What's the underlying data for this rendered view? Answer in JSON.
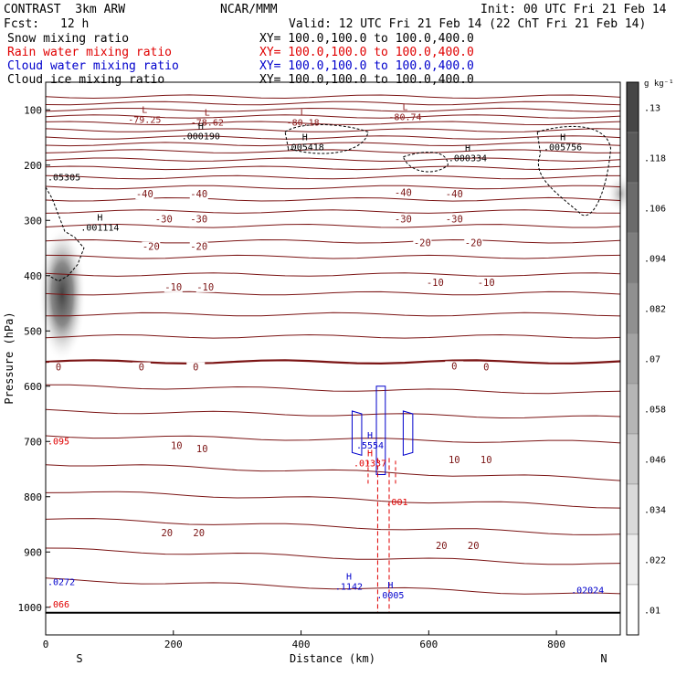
{
  "header": {
    "model": "CONTRAST  3km ARW",
    "center": "NCAR/MMM",
    "init": "Init: 00 UTC Fri 21 Feb 14",
    "fcst_label": "Fcst:",
    "fcst_value": "12 h",
    "valid": "Valid: 12 UTC Fri 21 Feb 14 (22 ChT Fri 21 Feb 14)",
    "fields": [
      {
        "name": "Snow mixing ratio",
        "color": "#000000",
        "xy": "XY= 100.0,100.0 to 100.0,400.0"
      },
      {
        "name": "Rain water mixing ratio",
        "color": "#e00000",
        "xy": "XY= 100.0,100.0 to 100.0,400.0"
      },
      {
        "name": "Cloud water mixing ratio",
        "color": "#0000cc",
        "xy": "XY= 100.0,100.0 to 100.0,400.0"
      },
      {
        "name": "Cloud ice mixing ratio",
        "color": "#000000",
        "xy": "XY= 100.0,100.0 to 100.0,400.0"
      }
    ]
  },
  "chart_data": {
    "type": "contour",
    "xlabel": "Distance (km)",
    "ylabel": "Pressure (hPa)",
    "xlim": [
      0,
      900
    ],
    "ylim": [
      1050,
      50
    ],
    "x_ticks": [
      0,
      200,
      400,
      600,
      800
    ],
    "y_ticks": [
      100,
      200,
      300,
      400,
      500,
      600,
      700,
      800,
      900,
      1000
    ],
    "x_end_labels": {
      "left": "S",
      "right": "N"
    },
    "colorbar": {
      "unit": "g kg⁻¹",
      "levels": [
        ".13",
        ".118",
        ".106",
        ".094",
        ".082",
        ".07",
        ".058",
        ".046",
        ".034",
        ".022",
        ".01"
      ]
    },
    "temperature_labels": [
      {
        "text": "-40",
        "x": 155,
        "p": 257
      },
      {
        "text": "-40",
        "x": 240,
        "p": 257
      },
      {
        "text": "-40",
        "x": 560,
        "p": 254
      },
      {
        "text": "-40",
        "x": 640,
        "p": 257
      },
      {
        "text": "-30",
        "x": 185,
        "p": 302
      },
      {
        "text": "-30",
        "x": 240,
        "p": 302
      },
      {
        "text": "-30",
        "x": 560,
        "p": 302
      },
      {
        "text": "-30",
        "x": 640,
        "p": 302
      },
      {
        "text": "-20",
        "x": 165,
        "p": 352
      },
      {
        "text": "-20",
        "x": 240,
        "p": 352
      },
      {
        "text": "-20",
        "x": 590,
        "p": 345
      },
      {
        "text": "-20",
        "x": 670,
        "p": 345
      },
      {
        "text": "-10",
        "x": 200,
        "p": 425
      },
      {
        "text": "-10",
        "x": 250,
        "p": 425
      },
      {
        "text": "-10",
        "x": 610,
        "p": 417
      },
      {
        "text": "-10",
        "x": 690,
        "p": 417
      },
      {
        "text": "0",
        "x": 20,
        "p": 570
      },
      {
        "text": "0",
        "x": 150,
        "p": 570
      },
      {
        "text": "0",
        "x": 235,
        "p": 570
      },
      {
        "text": "0",
        "x": 640,
        "p": 568
      },
      {
        "text": "0",
        "x": 690,
        "p": 570
      },
      {
        "text": "10",
        "x": 205,
        "p": 712
      },
      {
        "text": "10",
        "x": 245,
        "p": 718
      },
      {
        "text": "10",
        "x": 640,
        "p": 738
      },
      {
        "text": "10",
        "x": 690,
        "p": 738
      },
      {
        "text": "20",
        "x": 190,
        "p": 870
      },
      {
        "text": "20",
        "x": 240,
        "p": 870
      },
      {
        "text": "20",
        "x": 620,
        "p": 893
      },
      {
        "text": "20",
        "x": 670,
        "p": 893
      }
    ],
    "extrema": [
      {
        "letter": "L",
        "value": "-79.25",
        "x": 155,
        "p": 105,
        "color": "#8b1a1a"
      },
      {
        "letter": "L",
        "value": "-78.62",
        "x": 253,
        "p": 110,
        "color": "#8b1a1a"
      },
      {
        "letter": "L",
        "value": "-80.18",
        "x": 403,
        "p": 110,
        "color": "#8b1a1a"
      },
      {
        "letter": "L",
        "value": "-80.74",
        "x": 563,
        "p": 100,
        "color": "#8b1a1a"
      },
      {
        "letter": "H",
        "value": ".000190",
        "x": 243,
        "p": 135,
        "color": "#000000"
      },
      {
        "letter": "H",
        "value": ".005418",
        "x": 406,
        "p": 155,
        "color": "#000000"
      },
      {
        "letter": "H",
        "value": ".005756",
        "x": 810,
        "p": 155,
        "color": "#000000"
      },
      {
        "letter": "H",
        "value": ".000334",
        "x": 661,
        "p": 175,
        "color": "#000000"
      },
      {
        "letter": "H",
        "value": ".001114",
        "x": 85,
        "p": 300,
        "color": "#000000"
      },
      {
        "letter": "H",
        "value": ".5554",
        "x": 508,
        "p": 695,
        "color": "#0000cc"
      },
      {
        "letter": "H",
        "value": ".01337",
        "x": 508,
        "p": 727,
        "color": "#e00000"
      },
      {
        "letter": "H",
        "value": ".1142",
        "x": 475,
        "p": 950,
        "color": "#0000cc"
      },
      {
        "letter": "H",
        "value": ".0005",
        "x": 540,
        "p": 966,
        "color": "#0000cc"
      }
    ],
    "edge_labels": [
      {
        "text": ".05305",
        "x": 0,
        "p": 228,
        "color": "#000000"
      },
      {
        "text": ".095",
        "x": 0,
        "p": 705,
        "color": "#e00000"
      },
      {
        "text": ".001",
        "x": 530,
        "p": 815,
        "color": "#e00000"
      },
      {
        "text": ".0272",
        "x": 0,
        "p": 960,
        "color": "#0000cc"
      },
      {
        "text": ".066",
        "x": 0,
        "p": 1000,
        "color": "#e00000"
      },
      {
        "text": ".02024",
        "x": 820,
        "p": 975,
        "color": "#0000cc"
      }
    ]
  }
}
